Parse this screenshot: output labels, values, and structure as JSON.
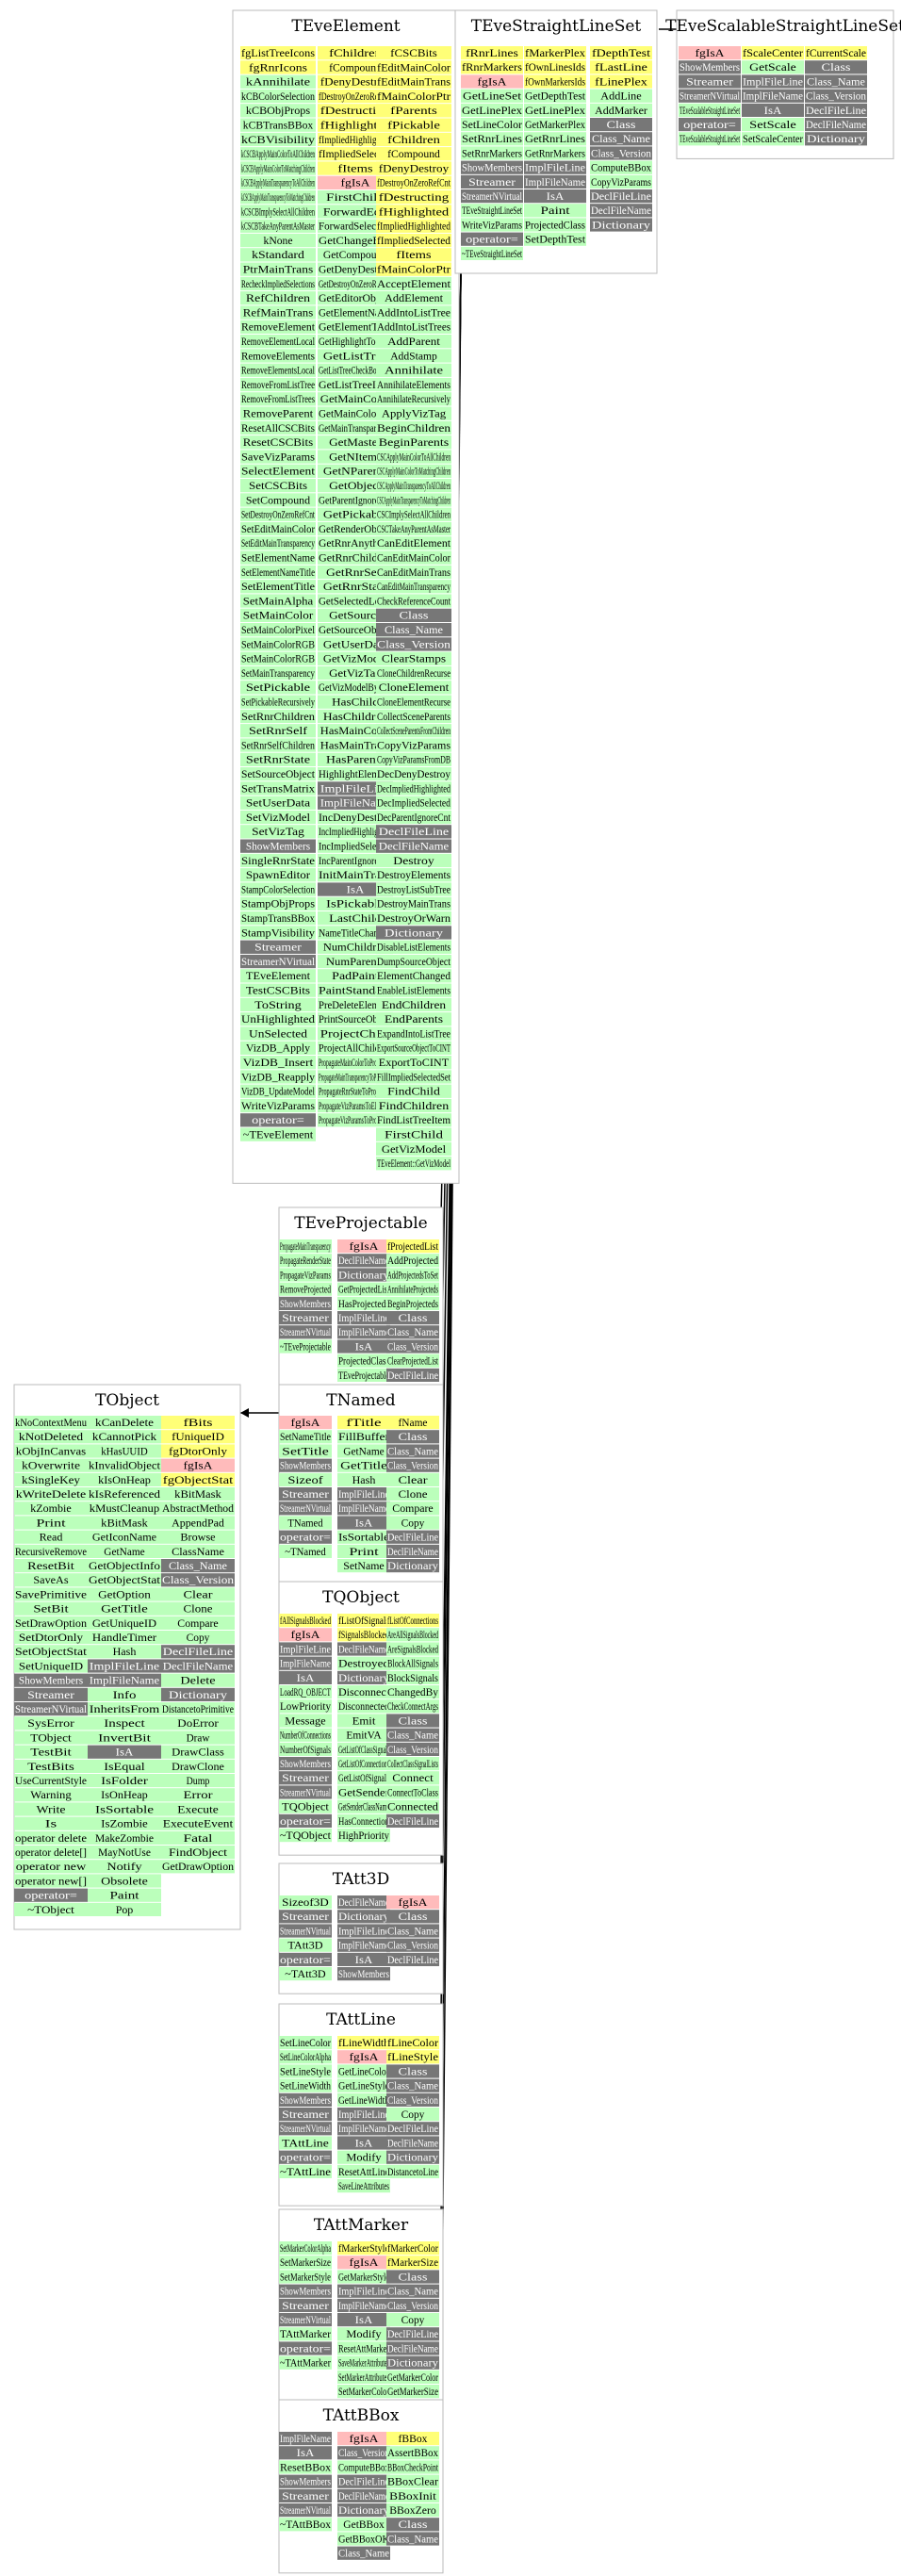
{
  "colors": {
    "method": "#bbffbb",
    "data": "#ffff77",
    "base": "#ffbbbb",
    "meta": "#777777",
    "frame": "#bbbbbb",
    "line": "#000000"
  },
  "classes": [
    {
      "id": "TEveElement",
      "title": "TEveElement",
      "cols": [
        [
          "fgListTreeIcons",
          "fgRnrIcons",
          "kAnnihilate",
          "kCBColorSelection",
          "kCBObjProps",
          "kCBTransBBox",
          "kCBVisibility",
          "kCSCBApplyMainColorToAllChildren",
          "kCSCBApplyMainColorToMatchingChildren",
          "kCSCBApplyMainTransparencyToAllChildren",
          "kCSCBApplyMainTransparencyToMatchingChildren",
          "kCSCBImplySelectAllChildren",
          "kCSCBTakeAnyParentAsMaster",
          "kNone",
          "kStandard",
          "PtrMainTrans",
          "RecheckImpliedSelections",
          "RefChildren",
          "RefMainTrans",
          "RemoveElement",
          "RemoveElementLocal",
          "RemoveElements",
          "RemoveElementsLocal",
          "RemoveFromListTree",
          "RemoveFromListTrees",
          "RemoveParent",
          "ResetAllCSCBits",
          "ResetCSCBits",
          "SaveVizParams",
          "SelectElement",
          "SetCSCBits",
          "SetCompound",
          "SetDestroyOnZeroRefCnt",
          "SetEditMainColor",
          "SetEditMainTransparency",
          "SetElementName",
          "SetElementNameTitle",
          "SetElementTitle",
          "SetMainAlpha",
          "SetMainColor",
          "SetMainColorPixel",
          "SetMainColorRGB",
          "SetMainColorRGB",
          "SetMainTransparency",
          "SetPickable",
          "SetPickableRecursively",
          "SetRnrChildren",
          "SetRnrSelf",
          "SetRnrSelfChildren",
          "SetRnrState",
          "SetSourceObject",
          "SetTransMatrix",
          "SetUserData",
          "SetVizModel",
          "SetVizTag",
          "ShowMembers",
          "SingleRnrState",
          "SpawnEditor",
          "StampColorSelection",
          "StampObjProps",
          "StampTransBBox",
          "StampVisibility",
          "Streamer",
          "StreamerNVirtual",
          "TEveElement",
          "TestCSCBits",
          "ToString",
          "UnHighlighted",
          "UnSelected",
          "VizDB_Apply",
          "VizDB_Insert",
          "VizDB_Reapply",
          "VizDB_UpdateModel",
          "WriteVizParams",
          "operator=",
          "~TEveElement"
        ],
        [
          "fChildren",
          "fCompound",
          "fDenyDestroy",
          "fDestroyOnZeroRefCnt",
          "fDestructing",
          "fHighlighted",
          "fImpliedHighlighted",
          "fImpliedSelected",
          "fItems",
          "fgIsA",
          "FirstChild",
          "ForwardEdit",
          "ForwardSelection",
          "GetChangeBits",
          "GetCompound",
          "GetDenyDestroy",
          "GetDestroyOnZeroRefCnt",
          "GetEditorObject",
          "GetElementName",
          "GetElementTitle",
          "GetHighlightTooltip",
          "GetListTree",
          "GetListTreeCheckBoxIcon",
          "GetListTreeIcon",
          "GetMainColor",
          "GetMainColorPtr",
          "GetMainTransparency",
          "GetMaster",
          "GetNItems",
          "GetNParents",
          "GetObject",
          "GetParentIgnoreCnt",
          "GetPickable",
          "GetRenderObject",
          "GetRnrAnything",
          "GetRnrChildren",
          "GetRnrSelf",
          "GetRnrState",
          "GetSelectedLevel",
          "GetSource",
          "GetSourceObject",
          "GetUserData",
          "GetVizModel",
          "GetVizTag",
          "GetVizModelByTag",
          "HasChild",
          "HasChildren",
          "HasMainColor",
          "HasMainTrans",
          "HasParents",
          "HighlightElement",
          "ImplFileLine",
          "ImplFileName",
          "IncDenyDestroy",
          "IncImpliedHighlighted",
          "IncImpliedSelected",
          "IncParentIgnoreCnt",
          "InitMainTrans",
          "IsA",
          "IsPickable",
          "LastChild",
          "NameTitleChanged",
          "NumChildren",
          "NumParents",
          "PadPaint",
          "PaintStandard",
          "PreDeleteElement",
          "PrintSourceObject",
          "ProjectChild",
          "ProjectAllChildren",
          "PropagateMainColorToProjecteds",
          "PropagateMainTransparencyToProjecteds",
          "PropagateRnrStateToProjecteds",
          "PropagateVizParamsToElements",
          "PropagateVizParamsToProjecteds"
        ],
        [
          "fCSCBits",
          "fEditMainColor",
          "fEditMainTrans",
          "fMainColorPtr",
          "fParents",
          "fPickable",
          "fChildren",
          "fCompound",
          "fDenyDestroy",
          "fDestroyOnZeroRefCnt",
          "fDestructing",
          "fHighlighted",
          "fImpliedHighlighted",
          "fImpliedSelected",
          "fItems",
          "fMainColorPtr",
          "AcceptElement",
          "AddElement",
          "AddIntoListTree",
          "AddIntoListTrees",
          "AddParent",
          "AddStamp",
          "Annihilate",
          "AnnihilateElements",
          "AnnihilateRecursively",
          "ApplyVizTag",
          "BeginChildren",
          "BeginParents",
          "CSCApplyMainColorToAllChildren",
          "CSCApplyMainColorToMatchingChildren",
          "CSCApplyMainTransparencyToAllChildren",
          "CSCApplyMainTransparencyToMatchingChildren",
          "CSCImplySelectAllChildren",
          "CSCTakeAnyParentAsMaster",
          "CanEditElement",
          "CanEditMainColor",
          "CanEditMainTrans",
          "CanEditMainTransparency",
          "CheckReferenceCount",
          "Class",
          "Class_Name",
          "Class_Version",
          "ClearStamps",
          "CloneChildrenRecurse",
          "CloneElement",
          "CloneElementRecurse",
          "CollectSceneParents",
          "CollectSceneParentsFromChildren",
          "CopyVizParams",
          "CopyVizParamsFromDB",
          "DecDenyDestroy",
          "DecImpliedHighlighted",
          "DecImpliedSelected",
          "DecParentIgnoreCnt",
          "DeclFileLine",
          "DeclFileName",
          "Destroy",
          "DestroyElements",
          "DestroyListSubTree",
          "DestroyMainTrans",
          "DestroyOrWarn",
          "Dictionary",
          "DisableListElements",
          "DumpSourceObject",
          "ElementChanged",
          "EnableListElements",
          "EndChildren",
          "EndParents",
          "ExpandIntoListTree",
          "ExportSourceObjectToCINT",
          "ExportToCINT",
          "FillImpliedSelectedSet",
          "FindChild",
          "FindChildren",
          "FindListTreeItem",
          "FirstChild",
          "GetVizModel",
          "TEveElement::GetVizModel"
        ]
      ]
    },
    {
      "id": "TEveStraightLineSet",
      "title": "TEveStraightLineSet",
      "cols": [
        [
          "fRnrLines",
          "fRnrMarkers",
          "fgIsA",
          "GetLineSet",
          "GetLinePlex",
          "SetLineColor",
          "SetRnrLines",
          "SetRnrMarkers",
          "ShowMembers",
          "Streamer",
          "StreamerNVirtual",
          "TEveStraightLineSet",
          "WriteVizParams",
          "operator=",
          "~TEveStraightLineSet"
        ],
        [
          "fMarkerPlex",
          "fOwnLinesIds",
          "fOwnMarkersIds",
          "GetDepthTest",
          "GetLinePlex",
          "GetMarkerPlex",
          "GetRnrLines",
          "GetRnrMarkers",
          "ImplFileLine",
          "ImplFileName",
          "IsA",
          "Paint",
          "ProjectedClass",
          "SetDepthTest"
        ],
        [
          "fDepthTest",
          "fLastLine",
          "fLinePlex",
          "AddLine",
          "AddMarker",
          "Class",
          "Class_Name",
          "Class_Version",
          "ComputeBBox",
          "CopyVizParams",
          "DeclFileLine",
          "DeclFileName",
          "Dictionary"
        ]
      ]
    },
    {
      "id": "TEveScalableStraightLineSet",
      "title": "TEveScalableStraightLineSet",
      "cols": [
        [
          "fgIsA",
          "ShowMembers",
          "Streamer",
          "StreamerNVirtual",
          "TEveScalableStraightLineSet",
          "operator=",
          "TEveScalableStraightLineSet"
        ],
        [
          "fScaleCenter",
          "GetScale",
          "ImplFileLine",
          "ImplFileName",
          "IsA",
          "SetScale",
          "SetScaleCenter"
        ],
        [
          "fCurrentScale",
          "Class",
          "Class_Name",
          "Class_Version",
          "DeclFileLine",
          "DeclFileName",
          "Dictionary"
        ]
      ]
    },
    {
      "id": "TEveProjectable",
      "title": "TEveProjectable",
      "cols": [
        [
          "PropagateMainTransparency",
          "PropagateRenderState",
          "PropagateVizParams",
          "RemoveProjected",
          "ShowMembers",
          "Streamer",
          "StreamerNVirtual",
          "~TEveProjectable"
        ],
        [
          "fgIsA",
          "DeclFileName",
          "Dictionary",
          "GetProjectedList",
          "HasProjecteds",
          "ImplFileLine",
          "ImplFileName",
          "IsA",
          "ProjectedClass",
          "TEveProjectable"
        ],
        [
          "fProjectedList",
          "AddProjected",
          "AddProjectedsToSet",
          "AnnihilateProjecteds",
          "BeginProjecteds",
          "Class",
          "Class_Name",
          "Class_Version",
          "ClearProjectedList",
          "DeclFileLine"
        ]
      ]
    },
    {
      "id": "TNamed",
      "title": "TNamed",
      "cols": [
        [
          "fgIsA",
          "SetNameTitle",
          "SetTitle",
          "ShowMembers",
          "Sizeof",
          "Streamer",
          "StreamerNVirtual",
          "TNamed",
          "operator=",
          "~TNamed"
        ],
        [
          "fTitle",
          "FillBuffer",
          "GetName",
          "GetTitle",
          "Hash",
          "ImplFileLine",
          "ImplFileName",
          "IsA",
          "IsSortable",
          "Print",
          "SetName"
        ],
        [
          "fName",
          "Class",
          "Class_Name",
          "Class_Version",
          "Clear",
          "Clone",
          "Compare",
          "Copy",
          "DeclFileLine",
          "DeclFileName",
          "Dictionary"
        ]
      ]
    },
    {
      "id": "TObject",
      "title": "TObject",
      "cols": [
        [
          "kNoContextMenu",
          "kNotDeleted",
          "kObjInCanvas",
          "kOverwrite",
          "kSingleKey",
          "kWriteDelete",
          "kZombie",
          "Print",
          "Read",
          "RecursiveRemove",
          "ResetBit",
          "SaveAs",
          "SavePrimitive",
          "SetBit",
          "SetDrawOption",
          "SetDtorOnly",
          "SetObjectStat",
          "SetUniqueID",
          "ShowMembers",
          "Streamer",
          "StreamerNVirtual",
          "SysError",
          "TObject",
          "TestBit",
          "TestBits",
          "UseCurrentStyle",
          "Warning",
          "Write",
          "Is",
          "operator delete",
          "operator delete[]",
          "operator new",
          "operator new[]",
          "operator=",
          "~TObject"
        ],
        [
          "kCanDelete",
          "kCannotPick",
          "kHasUUID",
          "kInvalidObject",
          "kIsOnHeap",
          "kIsReferenced",
          "kMustCleanup",
          "kBitMask",
          "GetIconName",
          "GetName",
          "GetObjectInfo",
          "GetObjectStat",
          "GetOption",
          "GetTitle",
          "GetUniqueID",
          "HandleTimer",
          "Hash",
          "ImplFileLine",
          "ImplFileName",
          "Info",
          "InheritsFrom",
          "Inspect",
          "InvertBit",
          "IsA",
          "IsEqual",
          "IsFolder",
          "IsOnHeap",
          "IsSortable",
          "IsZombie",
          "MakeZombie",
          "MayNotUse",
          "Notify",
          "Obsolete",
          "Paint",
          "Pop"
        ],
        [
          "fBits",
          "fUniqueID",
          "fgDtorOnly",
          "fgIsA",
          "fgObjectStat",
          "kBitMask",
          "AbstractMethod",
          "AppendPad",
          "Browse",
          "ClassName",
          "Class_Name",
          "Class_Version",
          "Clear",
          "Clone",
          "Compare",
          "Copy",
          "DeclFileLine",
          "DeclFileName",
          "Delete",
          "Dictionary",
          "DistancetoPrimitive",
          "DoError",
          "Draw",
          "DrawClass",
          "DrawClone",
          "Dump",
          "Error",
          "Execute",
          "ExecuteEvent",
          "Fatal",
          "FindObject",
          "GetDrawOption"
        ]
      ]
    },
    {
      "id": "TQObject",
      "title": "TQObject",
      "cols": [
        [
          "fAllSignalsBlocked",
          "fgIsA",
          "ImplFileLine",
          "ImplFileName",
          "IsA",
          "LoadRQ_OBJECT",
          "LowPriority",
          "Message",
          "NumberOfConnections",
          "NumberOfSignals",
          "ShowMembers",
          "Streamer",
          "StreamerNVirtual",
          "TQObject",
          "operator=",
          "~TQObject"
        ],
        [
          "fListOfSignals",
          "fSignalsBlocked",
          "DeclFileName",
          "Destroyed",
          "Dictionary",
          "Disconnect",
          "Disconnected",
          "Emit",
          "EmitVA",
          "GetListOfClassSignals",
          "GetListOfConnections",
          "GetListOfSignals",
          "GetSender",
          "GetSenderClassName",
          "HasConnection",
          "HighPriority"
        ],
        [
          "fListOfConnections",
          "AreAllSignalsBlocked",
          "AreSignalsBlocked",
          "BlockAllSignals",
          "BlockSignals",
          "ChangedBy",
          "CheckConnectArgs",
          "Class",
          "Class_Name",
          "Class_Version",
          "CollectClassSignalLists",
          "Connect",
          "ConnectToClass",
          "Connected",
          "DeclFileLine"
        ]
      ]
    },
    {
      "id": "TAtt3D",
      "title": "TAtt3D",
      "cols": [
        [
          "Sizeof3D",
          "Streamer",
          "StreamerNVirtual",
          "TAtt3D",
          "operator=",
          "~TAtt3D"
        ],
        [
          "DeclFileName",
          "Dictionary",
          "ImplFileLine",
          "ImplFileName",
          "IsA",
          "ShowMembers"
        ],
        [
          "fgIsA",
          "Class",
          "Class_Name",
          "Class_Version",
          "DeclFileLine"
        ]
      ]
    },
    {
      "id": "TAttLine",
      "title": "TAttLine",
      "cols": [
        [
          "SetLineColor",
          "SetLineColorAlpha",
          "SetLineStyle",
          "SetLineWidth",
          "ShowMembers",
          "Streamer",
          "StreamerNVirtual",
          "TAttLine",
          "operator=",
          "~TAttLine"
        ],
        [
          "fLineWidth",
          "fgIsA",
          "GetLineColor",
          "GetLineStyle",
          "GetLineWidth",
          "ImplFileLine",
          "ImplFileName",
          "IsA",
          "Modify",
          "ResetAttLine",
          "SaveLineAttributes"
        ],
        [
          "fLineColor",
          "fLineStyle",
          "Class",
          "Class_Name",
          "Class_Version",
          "Copy",
          "DeclFileLine",
          "DeclFileName",
          "Dictionary",
          "DistancetoLine"
        ]
      ]
    },
    {
      "id": "TAttMarker",
      "title": "TAttMarker",
      "cols": [
        [
          "SetMarkerColorAlpha",
          "SetMarkerSize",
          "SetMarkerStyle",
          "ShowMembers",
          "Streamer",
          "StreamerNVirtual",
          "TAttMarker",
          "operator=",
          "~TAttMarker"
        ],
        [
          "fMarkerStyle",
          "fgIsA",
          "GetMarkerStyle",
          "ImplFileLine",
          "ImplFileName",
          "IsA",
          "Modify",
          "ResetAttMarker",
          "SaveMarkerAttributes",
          "SetMarkerAttributes",
          "SetMarkerColor"
        ],
        [
          "fMarkerColor",
          "fMarkerSize",
          "Class",
          "Class_Name",
          "Class_Version",
          "Copy",
          "DeclFileLine",
          "DeclFileName",
          "Dictionary",
          "GetMarkerColor",
          "GetMarkerSize"
        ]
      ]
    },
    {
      "id": "TAttBBox",
      "title": "TAttBBox",
      "cols": [
        [
          "ImplFileName",
          "IsA",
          "ResetBBox",
          "ShowMembers",
          "Streamer",
          "StreamerNVirtual",
          "~TAttBBox"
        ],
        [
          "fgIsA",
          "Class_Version",
          "ComputeBBox",
          "DeclFileLine",
          "DeclFileName",
          "Dictionary",
          "GetBBox",
          "GetBBoxOK",
          "Class_Name"
        ],
        [
          "fBBox",
          "AssertBBox",
          "BBoxCheckPoint",
          "BBoxClear",
          "BBoxInit",
          "BBoxZero",
          "Class",
          "Class_Name"
        ]
      ]
    }
  ]
}
